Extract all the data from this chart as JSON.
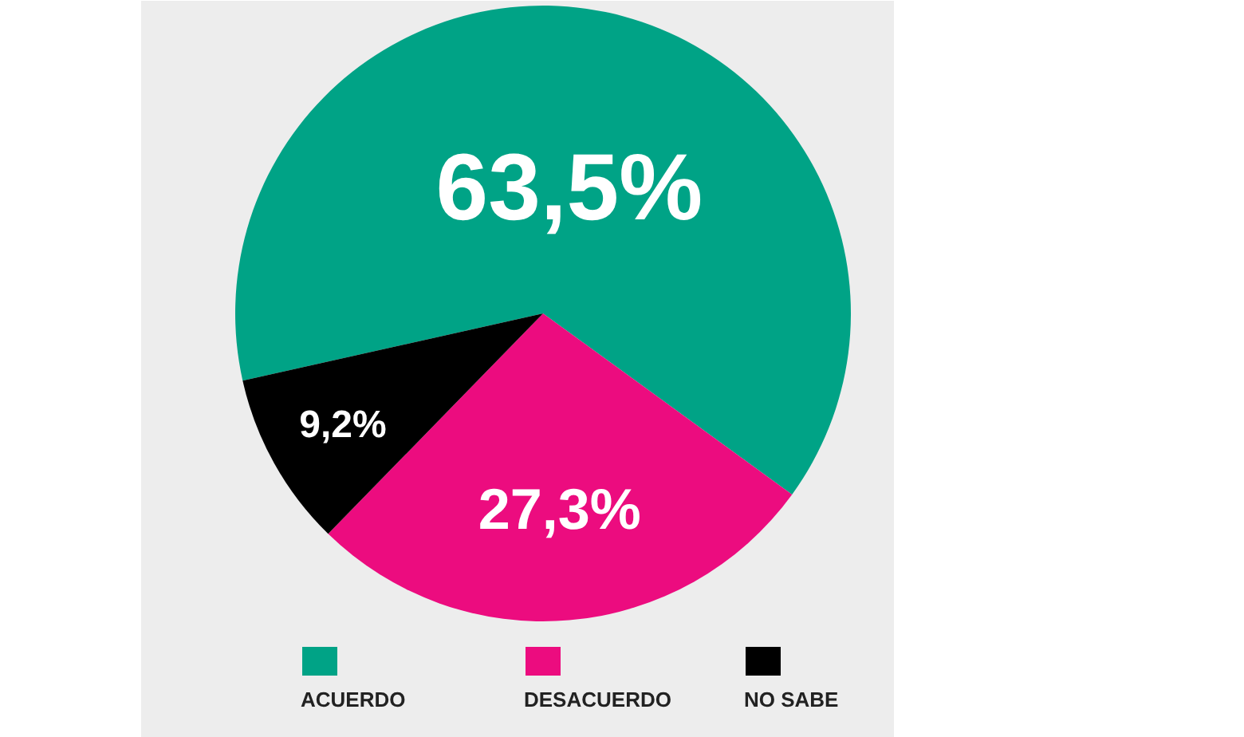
{
  "chart_data": {
    "type": "pie",
    "categories": [
      "ACUERDO",
      "DESACUERDO",
      "NO SABE"
    ],
    "values": [
      63.5,
      27.3,
      9.2
    ],
    "colors": [
      "#00a386",
      "#ec0c7f",
      "#000000"
    ],
    "value_labels": [
      "63,5%",
      "27,3%",
      "9,2%"
    ],
    "legend": "bottom"
  }
}
